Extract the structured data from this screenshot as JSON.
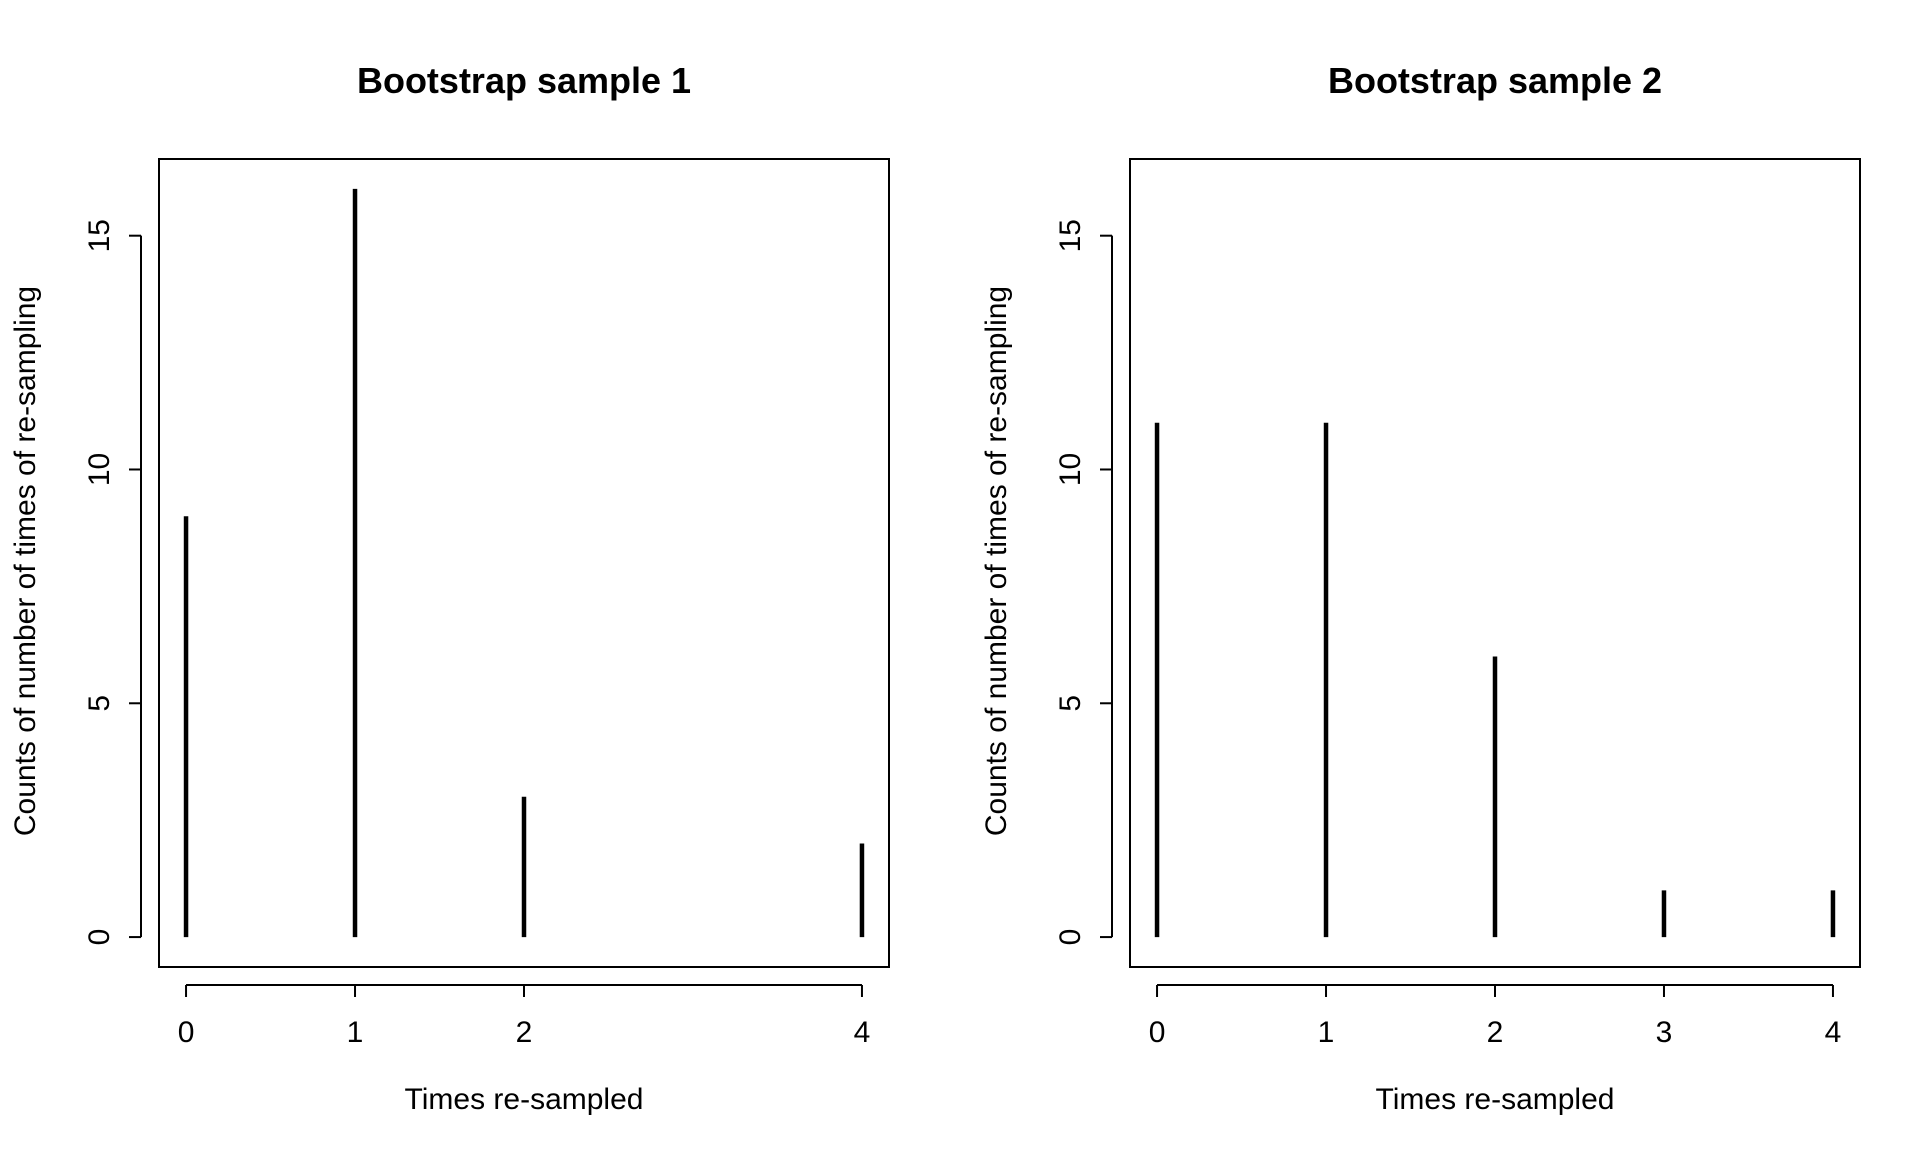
{
  "chart_data": [
    {
      "type": "bar",
      "style": "spike",
      "title": "Bootstrap sample 1",
      "xlabel": "Times re-sampled",
      "ylabel": "Counts of number of times of re-sampling",
      "x": [
        0,
        1,
        2,
        4
      ],
      "values": [
        9,
        16,
        3,
        2
      ],
      "xticks": [
        0,
        1,
        2,
        4
      ],
      "xlim": [
        -0.16,
        4.16
      ],
      "ylim": [
        -0.64,
        16.64
      ],
      "yticks": [
        0,
        5,
        10,
        15
      ],
      "grid": false,
      "color": "#000000"
    },
    {
      "type": "bar",
      "style": "spike",
      "title": "Bootstrap sample 2",
      "xlabel": "Times re-sampled",
      "ylabel": "Counts of number of times of re-sampling",
      "x": [
        0,
        1,
        2,
        3,
        4
      ],
      "values": [
        11,
        11,
        6,
        1,
        1
      ],
      "xticks": [
        0,
        1,
        2,
        3,
        4
      ],
      "xlim": [
        -0.16,
        4.16
      ],
      "ylim": [
        -0.64,
        16.64
      ],
      "yticks": [
        0,
        5,
        10,
        15
      ],
      "grid": false,
      "color": "#000000"
    }
  ]
}
